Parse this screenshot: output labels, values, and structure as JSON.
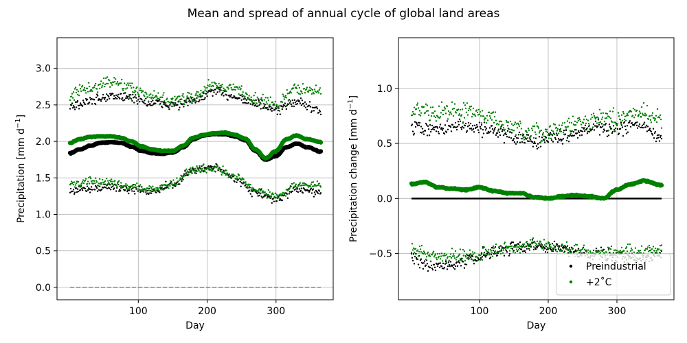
{
  "figure": {
    "suptitle": "Mean and spread of annual cycle of global land areas"
  },
  "colors": {
    "preindustrial": "#000000",
    "warming": "#008000",
    "zero_line": "#808080",
    "grid": "#b0b0b0"
  },
  "chart_data": [
    {
      "type": "scatter",
      "title": "",
      "xlabel": "Day",
      "ylabel": "Precipitation [mm d",
      "ylabel_sup": "−1",
      "ylabel_end": "]",
      "xlim": [
        -18,
        383
      ],
      "ylim": [
        -0.17,
        3.42
      ],
      "xticks": [
        100,
        200,
        300
      ],
      "yticks": [
        0.0,
        0.5,
        1.0,
        1.5,
        2.0,
        2.5,
        3.0
      ],
      "ytick_labels": [
        "0.0",
        "0.5",
        "1.0",
        "1.5",
        "2.0",
        "2.5",
        "3.0"
      ],
      "grid": true,
      "reference_line": {
        "y": 0.0,
        "style": "dashed",
        "x": [
          1,
          365
        ]
      },
      "series": [
        {
          "role": "mean",
          "group": "preindustrial",
          "marker": "large",
          "x_days": [
            1,
            15,
            30,
            45,
            60,
            75,
            90,
            105,
            120,
            135,
            150,
            165,
            180,
            195,
            210,
            225,
            240,
            255,
            270,
            285,
            300,
            315,
            330,
            345,
            365
          ],
          "y": [
            1.84,
            1.89,
            1.94,
            1.98,
            1.99,
            1.98,
            1.93,
            1.87,
            1.84,
            1.83,
            1.85,
            1.92,
            2.03,
            2.08,
            2.1,
            2.1,
            2.07,
            2.02,
            1.87,
            1.75,
            1.8,
            1.92,
            1.97,
            1.92,
            1.86
          ]
        },
        {
          "role": "mean",
          "group": "warming",
          "marker": "large",
          "x_days": [
            1,
            15,
            30,
            45,
            60,
            75,
            90,
            105,
            120,
            135,
            150,
            165,
            180,
            195,
            210,
            225,
            240,
            255,
            270,
            285,
            300,
            315,
            330,
            345,
            365
          ],
          "y": [
            1.98,
            2.03,
            2.06,
            2.07,
            2.07,
            2.05,
            2.0,
            1.93,
            1.89,
            1.87,
            1.87,
            1.94,
            2.05,
            2.09,
            2.11,
            2.12,
            2.09,
            2.04,
            1.89,
            1.77,
            1.87,
            2.03,
            2.08,
            2.03,
            1.99
          ]
        },
        {
          "role": "upper_spread",
          "group": "preindustrial",
          "marker": "small",
          "x_days": [
            1,
            30,
            60,
            90,
            120,
            150,
            180,
            210,
            240,
            270,
            300,
            330,
            365
          ],
          "y": [
            2.48,
            2.55,
            2.62,
            2.6,
            2.52,
            2.5,
            2.55,
            2.68,
            2.62,
            2.52,
            2.42,
            2.55,
            2.4
          ],
          "jitter": 0.1
        },
        {
          "role": "upper_spread",
          "group": "warming",
          "marker": "small",
          "x_days": [
            1,
            30,
            60,
            90,
            120,
            150,
            180,
            210,
            240,
            270,
            300,
            330,
            365
          ],
          "y": [
            2.65,
            2.72,
            2.82,
            2.72,
            2.6,
            2.55,
            2.62,
            2.78,
            2.72,
            2.58,
            2.5,
            2.72,
            2.68
          ],
          "jitter": 0.12
        },
        {
          "role": "lower_spread",
          "group": "preindustrial",
          "marker": "small",
          "x_days": [
            1,
            30,
            60,
            90,
            120,
            150,
            180,
            210,
            240,
            270,
            300,
            330,
            365
          ],
          "y": [
            1.32,
            1.36,
            1.38,
            1.34,
            1.32,
            1.4,
            1.6,
            1.65,
            1.5,
            1.3,
            1.2,
            1.35,
            1.3
          ],
          "jitter": 0.08
        },
        {
          "role": "lower_spread",
          "group": "warming",
          "marker": "small",
          "x_days": [
            1,
            30,
            60,
            90,
            120,
            150,
            180,
            210,
            240,
            270,
            300,
            330,
            365
          ],
          "y": [
            1.42,
            1.44,
            1.44,
            1.38,
            1.34,
            1.42,
            1.62,
            1.64,
            1.52,
            1.34,
            1.25,
            1.4,
            1.4
          ],
          "jitter": 0.08
        }
      ]
    },
    {
      "type": "scatter",
      "title": "",
      "xlabel": "Day",
      "ylabel": "Precipitation change [mm d",
      "ylabel_sup": "−1",
      "ylabel_end": "]",
      "xlim": [
        -18,
        383
      ],
      "ylim": [
        -0.92,
        1.46
      ],
      "xticks": [
        100,
        200,
        300
      ],
      "yticks": [
        -0.5,
        0.0,
        0.5,
        1.0
      ],
      "ytick_labels": [
        "−0.5",
        "0.0",
        "0.5",
        "1.0"
      ],
      "grid": true,
      "legend": {
        "placement": "lower-right",
        "entries": [
          {
            "label": "Preindustrial",
            "group": "preindustrial"
          },
          {
            "label": "+2˚C",
            "group": "warming"
          }
        ]
      },
      "series": [
        {
          "role": "mean",
          "group": "preindustrial",
          "marker": "line",
          "x_days": [
            1,
            365
          ],
          "y": [
            0.0,
            0.0
          ]
        },
        {
          "role": "mean",
          "group": "warming",
          "marker": "large",
          "x_days": [
            1,
            20,
            40,
            60,
            80,
            100,
            120,
            140,
            160,
            180,
            200,
            220,
            240,
            260,
            280,
            300,
            320,
            340,
            365
          ],
          "y": [
            0.13,
            0.15,
            0.1,
            0.09,
            0.08,
            0.1,
            0.07,
            0.05,
            0.05,
            0.01,
            0.0,
            0.02,
            0.03,
            0.02,
            0.0,
            0.08,
            0.13,
            0.16,
            0.12
          ]
        },
        {
          "role": "upper_spread",
          "group": "preindustrial",
          "marker": "small",
          "x_days": [
            1,
            30,
            60,
            90,
            120,
            150,
            180,
            210,
            240,
            270,
            300,
            330,
            365
          ],
          "y": [
            0.65,
            0.62,
            0.65,
            0.65,
            0.62,
            0.56,
            0.52,
            0.55,
            0.6,
            0.65,
            0.62,
            0.68,
            0.55
          ],
          "jitter": 0.09
        },
        {
          "role": "upper_spread",
          "group": "warming",
          "marker": "small",
          "x_days": [
            1,
            30,
            60,
            90,
            120,
            150,
            180,
            210,
            240,
            270,
            300,
            330,
            365
          ],
          "y": [
            0.8,
            0.78,
            0.8,
            0.78,
            0.72,
            0.62,
            0.58,
            0.62,
            0.68,
            0.72,
            0.72,
            0.78,
            0.75
          ],
          "jitter": 0.12
        },
        {
          "role": "lower_spread",
          "group": "preindustrial",
          "marker": "small",
          "x_days": [
            1,
            30,
            60,
            90,
            120,
            150,
            180,
            210,
            240,
            270,
            300,
            330,
            365
          ],
          "y": [
            -0.55,
            -0.62,
            -0.6,
            -0.55,
            -0.48,
            -0.45,
            -0.42,
            -0.45,
            -0.48,
            -0.5,
            -0.52,
            -0.55,
            -0.52
          ],
          "jitter": 0.08
        },
        {
          "role": "lower_spread",
          "group": "warming",
          "marker": "small",
          "x_days": [
            1,
            30,
            60,
            90,
            120,
            150,
            180,
            210,
            240,
            270,
            300,
            330,
            365
          ],
          "y": [
            -0.45,
            -0.52,
            -0.52,
            -0.52,
            -0.47,
            -0.45,
            -0.42,
            -0.45,
            -0.47,
            -0.5,
            -0.48,
            -0.48,
            -0.45
          ],
          "jitter": 0.08
        }
      ]
    }
  ]
}
